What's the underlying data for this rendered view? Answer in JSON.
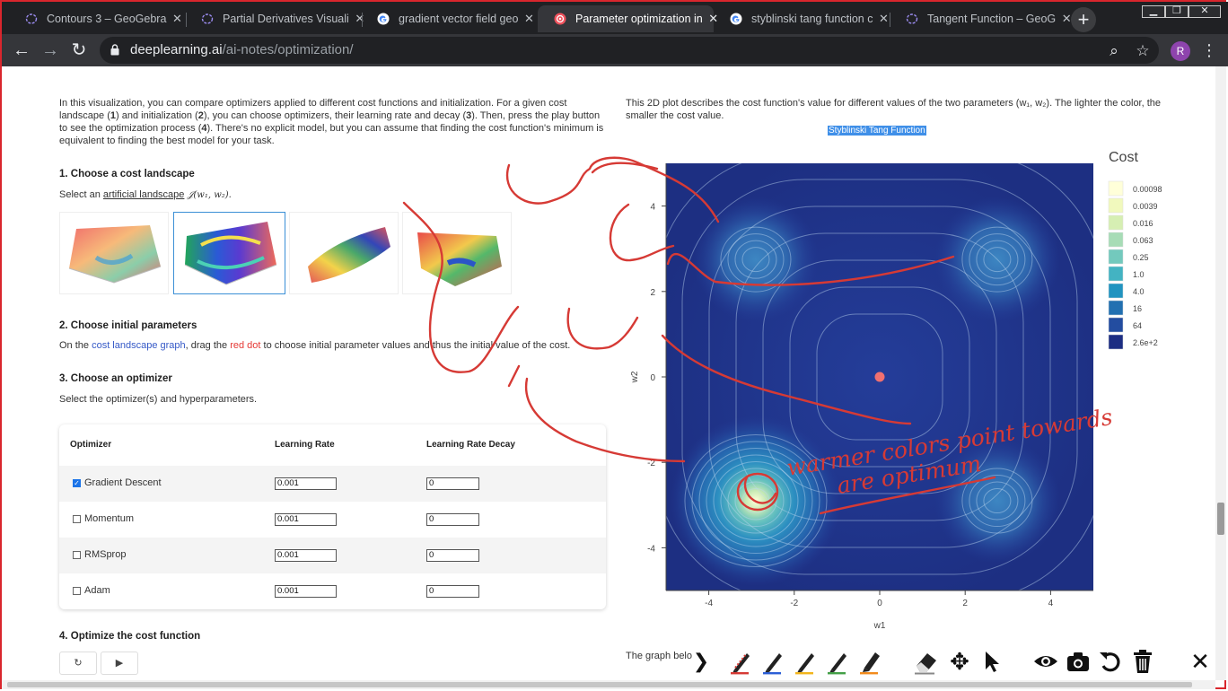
{
  "browser": {
    "tabs": [
      {
        "title": "Contours 3 – GeoGebra",
        "icon": "geogebra-icon",
        "active": false
      },
      {
        "title": "Partial Derivatives Visuali",
        "icon": "geogebra-icon",
        "active": false
      },
      {
        "title": "gradient vector field geo",
        "icon": "google-icon",
        "active": false
      },
      {
        "title": "Parameter optimization in",
        "icon": "deeplearning-icon",
        "active": true
      },
      {
        "title": "styblinski tang function c",
        "icon": "google-icon",
        "active": false
      },
      {
        "title": "Tangent Function – GeoG",
        "icon": "geogebra-icon",
        "active": false
      }
    ],
    "new_tab": "+",
    "window_controls": [
      "minimize",
      "restore",
      "close"
    ],
    "url_host": "deeplearning.ai",
    "url_path": "/ai-notes/optimization/",
    "profile_initial": "R"
  },
  "left": {
    "intro_1": "In this visualization, you can compare optimizers applied to different cost functions and initialization. For a given cost",
    "intro_2a": "landscape (",
    "intro_2b": "1",
    "intro_2c": ") and initialization (",
    "intro_2d": "2",
    "intro_2e": "), you can choose optimizers, their learning rate and decay (",
    "intro_2f": "3",
    "intro_2g": "). Then, press the play button",
    "intro_3a": "to see the optimization process (",
    "intro_3b": "4",
    "intro_3c": "). There's no explicit model, but you can assume that finding the cost function's minimum is",
    "intro_4": "equivalent to finding the best model for your task.",
    "s1_title": "1. Choose a cost landscape",
    "s1_desc_a": "Select an ",
    "s1_desc_link": "artificial landscape",
    "s1_desc_math": "𝒥(w₁, w₂).",
    "s2_title": "2. Choose initial parameters",
    "s2_desc_a": "On the ",
    "s2_desc_link": "cost landscape graph",
    "s2_desc_b": ", drag the ",
    "s2_desc_red": "red dot",
    "s2_desc_c": " to choose initial parameter values and thus the initial value of the cost.",
    "s3_title": "3. Choose an optimizer",
    "s3_desc": "Select the optimizer(s) and hyperparameters.",
    "table_headers": [
      "Optimizer",
      "Learning Rate",
      "Learning Rate Decay"
    ],
    "optimizers": [
      {
        "name": "Gradient Descent",
        "checked": true,
        "lr": "0.001",
        "decay": "0"
      },
      {
        "name": "Momentum",
        "checked": false,
        "lr": "0.001",
        "decay": "0"
      },
      {
        "name": "RMSprop",
        "checked": false,
        "lr": "0.001",
        "decay": "0"
      },
      {
        "name": "Adam",
        "checked": false,
        "lr": "0.001",
        "decay": "0"
      }
    ],
    "s4_title": "4. Optimize the cost function",
    "reset_label": "↻",
    "play_label": "▶"
  },
  "right": {
    "desc_1": "This 2D plot describes the cost function's value for different values of the two parameters (w₁, w₂). The lighter the color, the",
    "desc_2": "smaller the cost value.",
    "plot_title": "Styblinski Tang Function",
    "legend_title": "Cost",
    "legend": [
      {
        "label": "0.00098",
        "color": "#ffffd9"
      },
      {
        "label": "0.0039",
        "color": "#f1f9bd"
      },
      {
        "label": "0.016",
        "color": "#d6efb3"
      },
      {
        "label": "0.063",
        "color": "#a7dcb6"
      },
      {
        "label": "0.25",
        "color": "#73c9bd"
      },
      {
        "label": "1.0",
        "color": "#43b3c2"
      },
      {
        "label": "4.0",
        "color": "#2194c0"
      },
      {
        "label": "16",
        "color": "#2270b1"
      },
      {
        "label": "64",
        "color": "#234da0"
      },
      {
        "label": "2.6e+2",
        "color": "#1d2e83"
      }
    ],
    "xlabel": "w1",
    "ylabel": "w2",
    "xticks": [
      "-4",
      "-2",
      "0",
      "2",
      "4"
    ],
    "yticks": [
      "4",
      "2",
      "0",
      "-2",
      "-4"
    ],
    "start_point": {
      "w1": 0,
      "w2": 0
    },
    "below_text": "The graph belo"
  },
  "chart_data": {
    "type": "heatmap",
    "title": "Styblinski Tang Function",
    "xlabel": "w1",
    "ylabel": "w2",
    "xlim": [
      -5,
      5
    ],
    "ylim": [
      -5,
      5
    ],
    "colorbar_title": "Cost",
    "colorbar_ticks": [
      "0.00098",
      "0.0039",
      "0.016",
      "0.063",
      "0.25",
      "1.0",
      "4.0",
      "16",
      "64",
      "2.6e+2"
    ],
    "local_minima": [
      {
        "w1": -2.9,
        "w2": -2.9
      },
      {
        "w1": -2.9,
        "w2": 2.75
      },
      {
        "w1": 2.75,
        "w2": 2.75
      },
      {
        "w1": 2.75,
        "w2": -2.9
      }
    ],
    "marker": {
      "w1": 0,
      "w2": 0,
      "color": "#f07070"
    }
  },
  "handwriting": {
    "line1": "warmer colors point towards",
    "line2": "are optimum",
    "color": "#d63a35"
  },
  "annotation_toolbar": [
    "chevron-right-icon",
    "pen-red-icon",
    "pen-blue-icon",
    "pen-yellow-icon",
    "pen-green-icon",
    "highlighter-orange-icon",
    "eraser-icon",
    "move-icon",
    "pointer-icon",
    "eye-icon",
    "camera-icon",
    "undo-icon",
    "trash-icon",
    "close-icon"
  ]
}
